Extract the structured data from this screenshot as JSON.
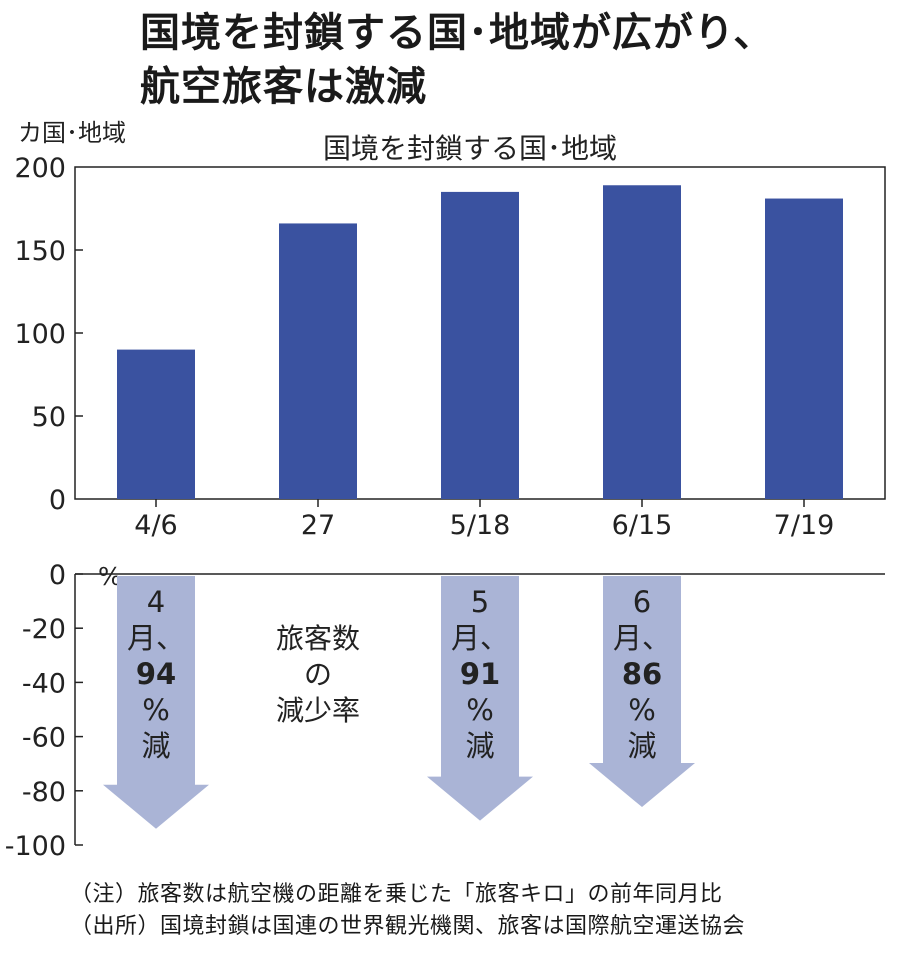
{
  "title_line1": "国境を封鎖する国･地域が広がり、",
  "title_line2": "航空旅客は激減",
  "notes": [
    "（注）旅客数は航空機の距離を乗じた「旅客キロ」の前年同月比",
    "（出所）国境封鎖は国連の世界観光機関、旅客は国際航空運送協会"
  ],
  "colors": {
    "bar": "#3a52a0",
    "arrow": "#aab4d6",
    "axis": "#222222"
  },
  "chart_data": [
    {
      "type": "bar",
      "title": "国境を封鎖する国･地域",
      "unit_label": "カ国･地域",
      "categories": [
        "4/6",
        "27",
        "5/18",
        "6/15",
        "7/19"
      ],
      "values": [
        90,
        166,
        185,
        189,
        181
      ],
      "yticks": [
        "200",
        "150",
        "100",
        "50",
        "0"
      ],
      "ylim": [
        0,
        200
      ]
    },
    {
      "type": "bar",
      "title": "旅客数の減少率",
      "unit_label": "%",
      "categories": [
        "4月",
        "5月",
        "6月"
      ],
      "values": [
        -94,
        -91,
        -86
      ],
      "labels": [
        {
          "month_num": "4",
          "month": "月",
          "sep": "、",
          "value": "94",
          "pct": "%",
          "word": "減"
        },
        {
          "month_num": "5",
          "month": "月",
          "sep": "、",
          "value": "91",
          "pct": "%",
          "word": "減"
        },
        {
          "month_num": "6",
          "month": "月",
          "sep": "、",
          "value": "86",
          "pct": "%",
          "word": "減"
        }
      ],
      "center_label": [
        "旅客数",
        "の",
        "減少率"
      ],
      "yticks": [
        "0",
        "-20",
        "-40",
        "-60",
        "-80",
        "-100"
      ],
      "ylim": [
        -100,
        0
      ]
    }
  ]
}
